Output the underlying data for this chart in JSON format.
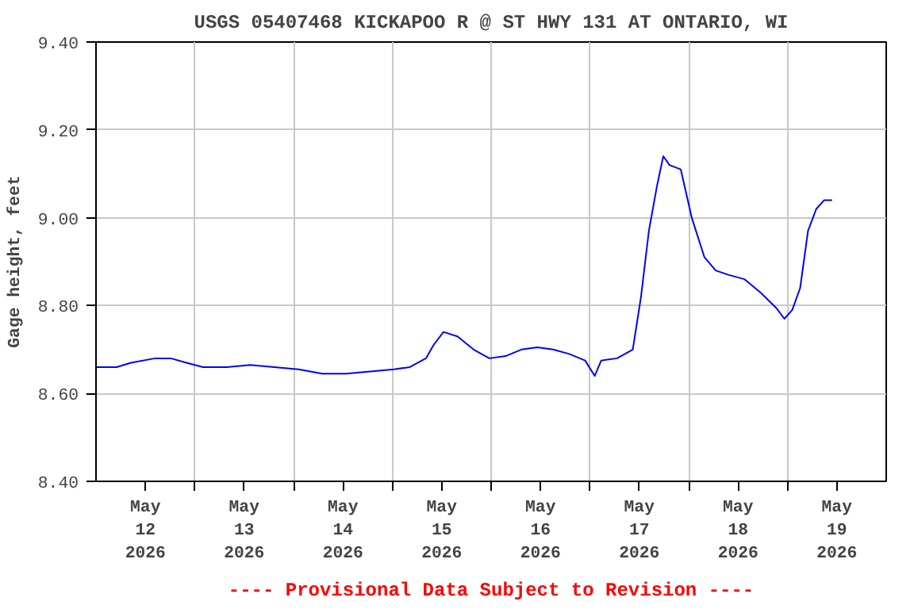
{
  "chart_data": {
    "type": "line",
    "title": "USGS 05407468 KICKAPOO R @ ST HWY 131 AT ONTARIO, WI",
    "ylabel": "Gage height, feet",
    "annotations": [
      "---- Provisional Data Subject to Revision ----"
    ],
    "series": [
      {
        "color": "#0000ff",
        "x": [
          "2026-05-12T00:00",
          "2026-05-12T05:00",
          "2026-05-12T08:30",
          "2026-05-12T14:20",
          "2026-05-12T18:10",
          "2026-05-12T22:00",
          "2026-05-13T02:00",
          "2026-05-13T07:45",
          "2026-05-13T13:30",
          "2026-05-13T19:20",
          "2026-05-14T01:10",
          "2026-05-14T07:00",
          "2026-05-14T12:45",
          "2026-05-14T18:35",
          "2026-05-15T00:25",
          "2026-05-15T04:15",
          "2026-05-15T08:10",
          "2026-05-15T10:00",
          "2026-05-15T12:25",
          "2026-05-15T15:50",
          "2026-05-15T19:45",
          "2026-05-15T23:35",
          "2026-05-16T03:30",
          "2026-05-16T07:20",
          "2026-05-16T11:15",
          "2026-05-16T15:05",
          "2026-05-16T19:00",
          "2026-05-16T22:50",
          "2026-05-17T01:10",
          "2026-05-17T02:45",
          "2026-05-17T06:35",
          "2026-05-17T10:25",
          "2026-05-17T12:25",
          "2026-05-17T14:20",
          "2026-05-17T16:15",
          "2026-05-17T17:50",
          "2026-05-17T19:20",
          "2026-05-17T22:05",
          "2026-05-18T00:45",
          "2026-05-18T03:50",
          "2026-05-18T06:35",
          "2026-05-18T09:40",
          "2026-05-18T13:35",
          "2026-05-18T17:25",
          "2026-05-18T21:15",
          "2026-05-18T23:15",
          "2026-05-19T01:10",
          "2026-05-19T03:05",
          "2026-05-19T05:00",
          "2026-05-19T07:00",
          "2026-05-19T08:55",
          "2026-05-19T10:50"
        ],
        "values": [
          8.66,
          8.66,
          8.67,
          8.68,
          8.68,
          8.67,
          8.66,
          8.66,
          8.665,
          8.66,
          8.655,
          8.645,
          8.645,
          8.65,
          8.655,
          8.66,
          8.68,
          8.71,
          8.74,
          8.73,
          8.7,
          8.68,
          8.685,
          8.7,
          8.705,
          8.7,
          8.69,
          8.675,
          8.64,
          8.675,
          8.68,
          8.7,
          8.82,
          8.97,
          9.07,
          9.14,
          9.12,
          9.11,
          9.0,
          8.91,
          8.88,
          8.87,
          8.86,
          8.83,
          8.795,
          8.77,
          8.79,
          8.84,
          8.97,
          9.02,
          9.04,
          9.04
        ]
      }
    ],
    "xlim": [
      "2026-05-12T00:00",
      "2026-05-20T00:00"
    ],
    "xticks": [
      {
        "value": "2026-05-12T12:00",
        "label": "May\n12\n2026"
      },
      {
        "value": "2026-05-13T00:00",
        "label": null
      },
      {
        "value": "2026-05-13T12:00",
        "label": "May\n13\n2026"
      },
      {
        "value": "2026-05-14T00:00",
        "label": null
      },
      {
        "value": "2026-05-14T12:00",
        "label": "May\n14\n2026"
      },
      {
        "value": "2026-05-15T00:00",
        "label": null
      },
      {
        "value": "2026-05-15T12:00",
        "label": "May\n15\n2026"
      },
      {
        "value": "2026-05-16T00:00",
        "label": null
      },
      {
        "value": "2026-05-16T12:00",
        "label": "May\n16\n2026"
      },
      {
        "value": "2026-05-17T00:00",
        "label": null
      },
      {
        "value": "2026-05-17T12:00",
        "label": "May\n17\n2026"
      },
      {
        "value": "2026-05-18T00:00",
        "label": null
      },
      {
        "value": "2026-05-18T12:00",
        "label": "May\n18\n2026"
      },
      {
        "value": "2026-05-19T00:00",
        "label": null
      },
      {
        "value": "2026-05-19T12:00",
        "label": "May\n19\n2026"
      }
    ],
    "ylim": [
      8.4,
      9.4
    ],
    "yticks": [
      {
        "value": 8.4,
        "label": "8.40"
      },
      {
        "value": 8.6,
        "label": "8.60"
      },
      {
        "value": 8.8,
        "label": "8.80"
      },
      {
        "value": 9.0,
        "label": "9.00"
      },
      {
        "value": 9.2,
        "label": "9.20"
      },
      {
        "value": 9.4,
        "label": "9.40"
      }
    ],
    "grid": true
  }
}
